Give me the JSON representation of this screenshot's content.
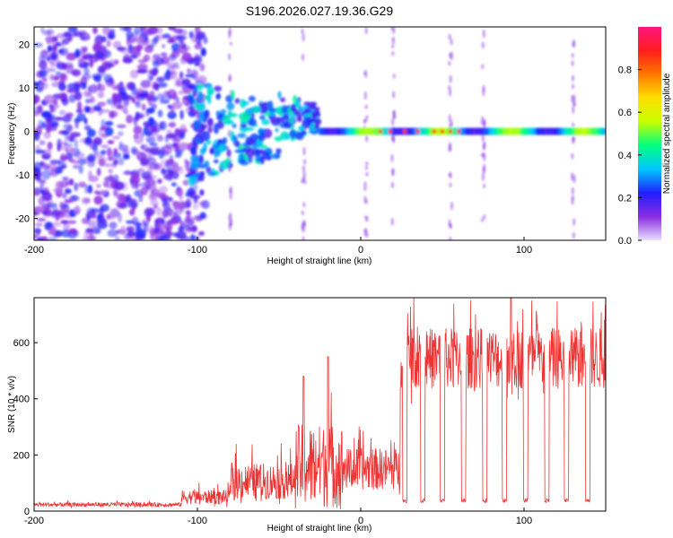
{
  "title": "S196.2026.027.19.36.G29",
  "chart_data": [
    {
      "type": "heatmap",
      "xlabel": "Height of straight line (km)",
      "ylabel": "Frequency (Hz)",
      "xlim": [
        -200,
        150
      ],
      "ylim": [
        -25,
        24
      ],
      "xticks": [
        -200,
        -100,
        0,
        100
      ],
      "yticks": [
        -20,
        -10,
        0,
        10,
        20
      ],
      "colorbar": {
        "label": "Normalized spectral amplitude",
        "range": [
          0,
          1
        ],
        "ticks": [
          0,
          0.2,
          0.4,
          0.6,
          0.8
        ],
        "stops": [
          "#e8e0ff",
          "#8a2be2",
          "#2020ff",
          "#00c8ff",
          "#00ff80",
          "#c8ff00",
          "#ffe000",
          "#ff7800",
          "#ff1e1e",
          "#ff1480"
        ]
      },
      "features": {
        "noise_region_x": [
          -200,
          -105
        ],
        "noise_amplitude": 0.15,
        "transition_x": [
          -105,
          -25
        ],
        "transition_amplitude": 0.3,
        "signal_line_x": [
          -25,
          150
        ],
        "signal_line_freq": 0,
        "signal_line_amplitude": 0.55,
        "signal_peak_amplitude": 0.85
      }
    },
    {
      "type": "line",
      "xlabel": "Height of straight line (km)",
      "ylabel": "SNR (10 * v/v)",
      "xlim": [
        -200,
        150
      ],
      "ylim": [
        0,
        760
      ],
      "xticks": [
        -200,
        -100,
        0,
        100
      ],
      "yticks": [
        0,
        200,
        400,
        600
      ],
      "color": "#ee3333",
      "segments": [
        {
          "x": [
            -200,
            -110
          ],
          "baseline": 20,
          "variation": 15
        },
        {
          "x": [
            -110,
            -80
          ],
          "baseline": 40,
          "variation": 50
        },
        {
          "x": [
            -80,
            -40
          ],
          "baseline": 80,
          "variation": 130
        },
        {
          "x": [
            -40,
            -10
          ],
          "baseline": 100,
          "variation": 300
        },
        {
          "x": [
            -10,
            24
          ],
          "baseline": 120,
          "variation": 150
        },
        {
          "x": [
            24,
            150
          ],
          "baseline": 500,
          "variation": 220
        }
      ],
      "dropouts_x": [
        27,
        38,
        50,
        63,
        76,
        88,
        101,
        114,
        126,
        139
      ],
      "dropout_level": 30,
      "peak_values": [
        {
          "x": -20,
          "y": 550
        },
        {
          "x": -35,
          "y": 480
        },
        {
          "x": 92,
          "y": 760
        }
      ]
    }
  ]
}
